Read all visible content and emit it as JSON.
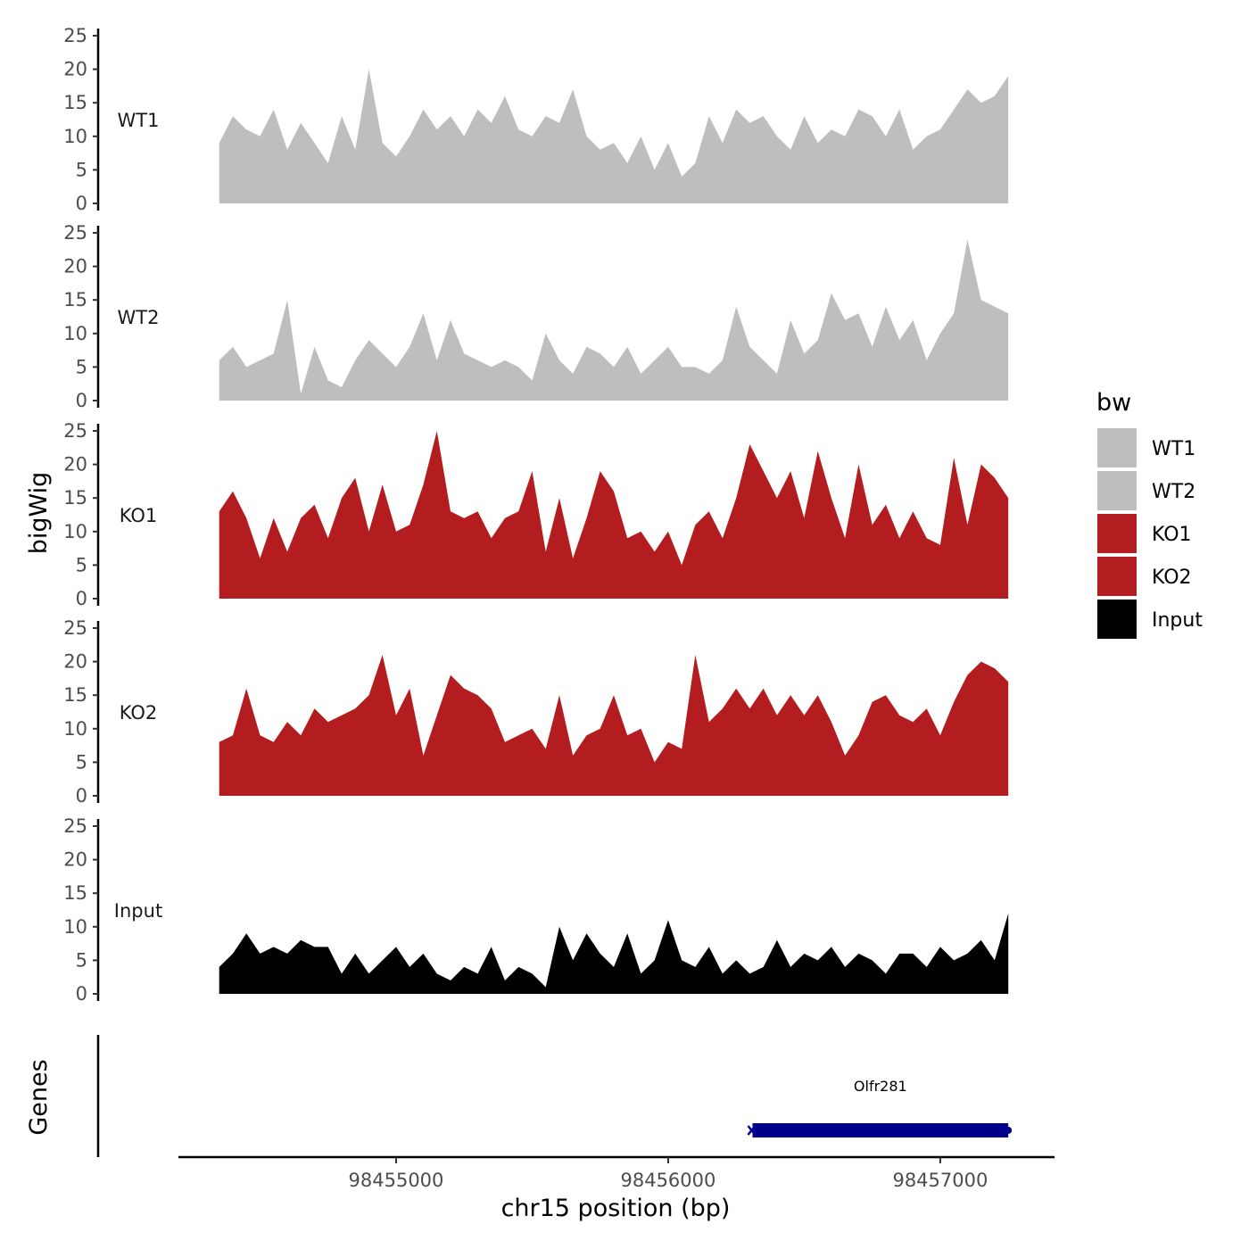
{
  "chart_data": {
    "type": "area",
    "ylabel": "bigWig",
    "xlabel": "chr15 position (bp)",
    "xlim": [
      98454200,
      98457420
    ],
    "ylim": [
      0,
      25
    ],
    "y_ticks": [
      0,
      5,
      10,
      15,
      20,
      25
    ],
    "x_ticks": [
      98455000,
      98456000,
      98457000
    ],
    "x_tick_labels": [
      "98455000",
      "98456000",
      "98457000"
    ],
    "legend": {
      "title": "bw",
      "position": "right",
      "entries": [
        {
          "label": "WT1",
          "color": "#bebebe"
        },
        {
          "label": "WT2",
          "color": "#bebebe"
        },
        {
          "label": "KO1",
          "color": "#b31d1f"
        },
        {
          "label": "KO2",
          "color": "#b31d1f"
        },
        {
          "label": "Input",
          "color": "#000000"
        }
      ]
    },
    "x": [
      98454350,
      98454400,
      98454450,
      98454500,
      98454550,
      98454600,
      98454650,
      98454700,
      98454750,
      98454800,
      98454850,
      98454900,
      98454950,
      98455000,
      98455050,
      98455100,
      98455150,
      98455200,
      98455250,
      98455300,
      98455350,
      98455400,
      98455450,
      98455500,
      98455550,
      98455600,
      98455650,
      98455700,
      98455750,
      98455800,
      98455850,
      98455900,
      98455950,
      98456000,
      98456050,
      98456100,
      98456150,
      98456200,
      98456250,
      98456300,
      98456350,
      98456400,
      98456450,
      98456500,
      98456550,
      98456600,
      98456650,
      98456700,
      98456750,
      98456800,
      98456850,
      98456900,
      98456950,
      98457000,
      98457050,
      98457100,
      98457150,
      98457200,
      98457250
    ],
    "series": [
      {
        "name": "WT1",
        "color": "#bebebe",
        "values": [
          9,
          13,
          11,
          10,
          14,
          8,
          12,
          9,
          6,
          13,
          8,
          20,
          9,
          7,
          10,
          14,
          11,
          13,
          10,
          14,
          12,
          16,
          11,
          10,
          13,
          12,
          17,
          10,
          8,
          9,
          6,
          10,
          5,
          9,
          4,
          6,
          13,
          9,
          14,
          12,
          13,
          10,
          8,
          13,
          9,
          11,
          10,
          14,
          13,
          10,
          14,
          8,
          10,
          11,
          14,
          17,
          15,
          16,
          19
        ]
      },
      {
        "name": "WT2",
        "color": "#bebebe",
        "values": [
          6,
          8,
          5,
          6,
          7,
          15,
          1,
          8,
          3,
          2,
          6,
          9,
          7,
          5,
          8,
          13,
          6,
          12,
          7,
          6,
          5,
          6,
          5,
          3,
          10,
          6,
          4,
          8,
          7,
          5,
          8,
          4,
          6,
          8,
          5,
          5,
          4,
          6,
          14,
          8,
          6,
          4,
          12,
          7,
          9,
          16,
          12,
          13,
          8,
          14,
          9,
          12,
          6,
          10,
          13,
          24,
          15,
          14,
          13
        ]
      },
      {
        "name": "KO1",
        "color": "#b31d1f",
        "values": [
          13,
          16,
          12,
          6,
          12,
          7,
          12,
          14,
          9,
          15,
          18,
          10,
          17,
          10,
          11,
          17,
          25,
          13,
          12,
          13,
          9,
          12,
          13,
          19,
          7,
          15,
          6,
          12,
          19,
          16,
          9,
          10,
          7,
          10,
          5,
          11,
          13,
          9,
          15,
          23,
          19,
          15,
          19,
          12,
          22,
          15,
          9,
          20,
          11,
          14,
          9,
          13,
          9,
          8,
          21,
          11,
          20,
          18,
          15
        ]
      },
      {
        "name": "KO2",
        "color": "#b31d1f",
        "values": [
          8,
          9,
          16,
          9,
          8,
          11,
          9,
          13,
          11,
          12,
          13,
          15,
          21,
          12,
          16,
          6,
          12,
          18,
          16,
          15,
          13,
          8,
          9,
          10,
          7,
          15,
          6,
          9,
          10,
          15,
          9,
          10,
          5,
          8,
          7,
          21,
          11,
          13,
          16,
          13,
          16,
          12,
          15,
          12,
          15,
          11,
          6,
          9,
          14,
          15,
          12,
          11,
          13,
          9,
          14,
          18,
          20,
          19,
          17
        ]
      },
      {
        "name": "Input",
        "color": "#000000",
        "values": [
          4,
          6,
          9,
          6,
          7,
          6,
          8,
          7,
          7,
          3,
          6,
          3,
          5,
          7,
          4,
          6,
          3,
          2,
          4,
          3,
          7,
          2,
          4,
          3,
          1,
          10,
          5,
          9,
          6,
          4,
          9,
          3,
          5,
          11,
          5,
          4,
          7,
          3,
          5,
          3,
          4,
          8,
          4,
          6,
          5,
          7,
          4,
          6,
          5,
          3,
          6,
          6,
          4,
          7,
          5,
          6,
          8,
          5,
          12
        ]
      }
    ],
    "gene_track": {
      "label": "Genes",
      "genes": [
        {
          "name": "Olfr281",
          "start": 98456310,
          "end": 98457250,
          "color": "#00008b"
        }
      ]
    }
  }
}
